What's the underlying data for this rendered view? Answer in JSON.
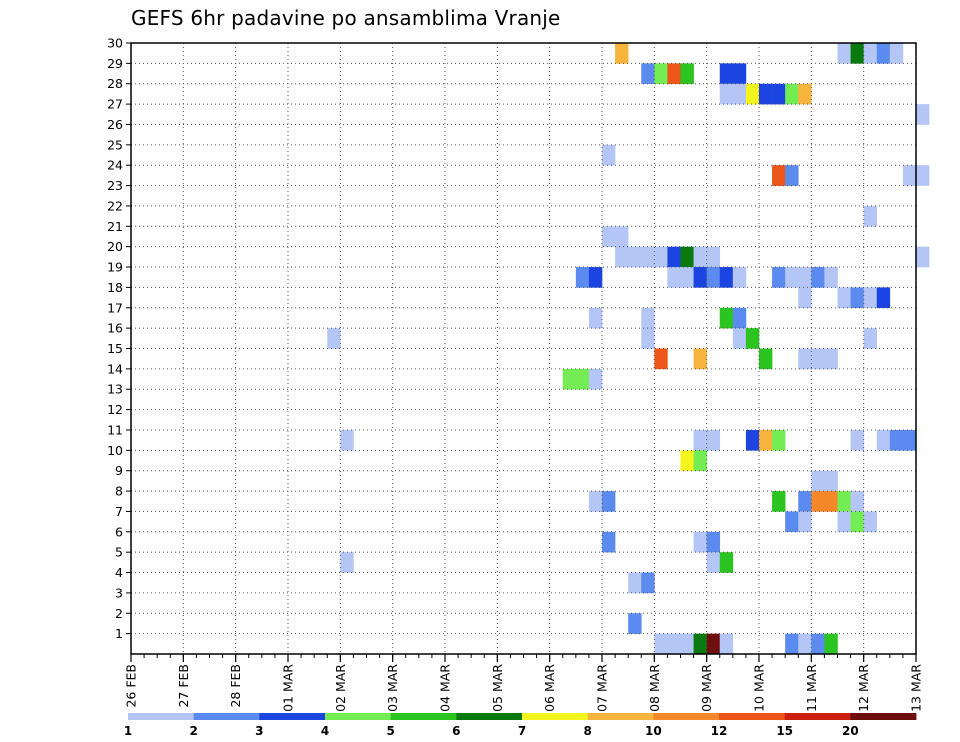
{
  "chart_data": {
    "type": "heatmap",
    "title": "GEFS 6hr padavine po ansamblima Vranje",
    "x_tick_labels": [
      "26 FEB",
      "27 FEB",
      "28 FEB",
      "01 MAR",
      "02 MAR",
      "03 MAR",
      "04 MAR",
      "05 MAR",
      "06 MAR",
      "07 MAR",
      "08 MAR",
      "09 MAR",
      "10 MAR",
      "11 MAR",
      "12 MAR",
      "13 MAR"
    ],
    "y_ticks": [
      1,
      2,
      3,
      4,
      5,
      6,
      7,
      8,
      9,
      10,
      11,
      12,
      13,
      14,
      15,
      16,
      17,
      18,
      19,
      20,
      21,
      22,
      23,
      24,
      25,
      26,
      27,
      28,
      29,
      30
    ],
    "xlim": [
      0,
      60
    ],
    "ylim": [
      0,
      30
    ],
    "time_step": "6hr",
    "grid": "dotted",
    "colorbar": {
      "levels": [
        "1",
        "2",
        "3",
        "4",
        "5",
        "6",
        "7",
        "8",
        "10",
        "12",
        "15",
        "20"
      ],
      "colors": [
        "#b3c6f5",
        "#5b8bef",
        "#1c44e0",
        "#74ec54",
        "#2cc421",
        "#0a7a10",
        "#f5f51e",
        "#f7b43c",
        "#f5892a",
        "#ee5518",
        "#cc1d0e",
        "#6e0f0e"
      ]
    },
    "cells": [
      [
        37,
        29,
        7
      ],
      [
        54,
        29,
        0
      ],
      [
        55,
        29,
        5
      ],
      [
        56,
        29,
        0
      ],
      [
        57,
        29,
        1
      ],
      [
        58,
        29,
        0
      ],
      [
        39,
        28,
        1
      ],
      [
        40,
        28,
        3
      ],
      [
        41,
        28,
        9
      ],
      [
        42,
        28,
        4
      ],
      [
        45,
        28,
        2
      ],
      [
        46,
        28,
        2
      ],
      [
        45,
        27,
        0
      ],
      [
        46,
        27,
        0
      ],
      [
        47,
        27,
        6
      ],
      [
        48,
        27,
        2
      ],
      [
        49,
        27,
        2
      ],
      [
        50,
        27,
        3
      ],
      [
        51,
        27,
        7
      ],
      [
        60,
        26,
        0
      ],
      [
        36,
        24,
        0
      ],
      [
        49,
        23,
        9
      ],
      [
        50,
        23,
        1
      ],
      [
        59,
        23,
        0
      ],
      [
        60,
        23,
        0
      ],
      [
        56,
        21,
        0
      ],
      [
        36,
        20,
        0
      ],
      [
        37,
        20,
        0
      ],
      [
        37,
        19,
        0
      ],
      [
        38,
        19,
        0
      ],
      [
        39,
        19,
        0
      ],
      [
        40,
        19,
        0
      ],
      [
        41,
        19,
        2
      ],
      [
        42,
        19,
        5
      ],
      [
        43,
        19,
        0
      ],
      [
        44,
        19,
        0
      ],
      [
        60,
        19,
        0
      ],
      [
        34,
        18,
        1
      ],
      [
        35,
        18,
        2
      ],
      [
        41,
        18,
        0
      ],
      [
        42,
        18,
        0
      ],
      [
        43,
        18,
        2
      ],
      [
        44,
        18,
        1
      ],
      [
        45,
        18,
        2
      ],
      [
        46,
        18,
        0
      ],
      [
        49,
        18,
        1
      ],
      [
        50,
        18,
        0
      ],
      [
        51,
        18,
        0
      ],
      [
        52,
        18,
        1
      ],
      [
        53,
        18,
        0
      ],
      [
        51,
        17,
        0
      ],
      [
        54,
        17,
        0
      ],
      [
        55,
        17,
        1
      ],
      [
        56,
        17,
        0
      ],
      [
        57,
        17,
        2
      ],
      [
        35,
        16,
        0
      ],
      [
        39,
        16,
        0
      ],
      [
        45,
        16,
        4
      ],
      [
        46,
        16,
        1
      ],
      [
        15,
        15,
        0
      ],
      [
        39,
        15,
        0
      ],
      [
        46,
        15,
        0
      ],
      [
        47,
        15,
        4
      ],
      [
        56,
        15,
        0
      ],
      [
        40,
        14,
        9
      ],
      [
        43,
        14,
        7
      ],
      [
        48,
        14,
        4
      ],
      [
        51,
        14,
        0
      ],
      [
        52,
        14,
        0
      ],
      [
        53,
        14,
        0
      ],
      [
        33,
        13,
        3
      ],
      [
        34,
        13,
        3
      ],
      [
        35,
        13,
        0
      ],
      [
        16,
        10,
        0
      ],
      [
        43,
        10,
        0
      ],
      [
        44,
        10,
        0
      ],
      [
        47,
        10,
        2
      ],
      [
        48,
        10,
        7
      ],
      [
        49,
        10,
        3
      ],
      [
        55,
        10,
        0
      ],
      [
        57,
        10,
        0
      ],
      [
        58,
        10,
        1
      ],
      [
        59,
        10,
        1
      ],
      [
        42,
        9,
        6
      ],
      [
        43,
        9,
        3
      ],
      [
        52,
        8,
        0
      ],
      [
        53,
        8,
        0
      ],
      [
        35,
        7,
        0
      ],
      [
        36,
        7,
        1
      ],
      [
        49,
        7,
        4
      ],
      [
        51,
        7,
        1
      ],
      [
        52,
        7,
        8
      ],
      [
        53,
        7,
        8
      ],
      [
        54,
        7,
        3
      ],
      [
        55,
        7,
        0
      ],
      [
        50,
        6,
        1
      ],
      [
        51,
        6,
        0
      ],
      [
        54,
        6,
        0
      ],
      [
        55,
        6,
        3
      ],
      [
        56,
        6,
        0
      ],
      [
        36,
        5,
        1
      ],
      [
        43,
        5,
        0
      ],
      [
        44,
        5,
        1
      ],
      [
        16,
        4,
        0
      ],
      [
        44,
        4,
        0
      ],
      [
        45,
        4,
        4
      ],
      [
        38,
        3,
        0
      ],
      [
        39,
        3,
        1
      ],
      [
        38,
        1,
        1
      ],
      [
        40,
        0,
        0
      ],
      [
        41,
        0,
        0
      ],
      [
        42,
        0,
        0
      ],
      [
        43,
        0,
        5
      ],
      [
        44,
        0,
        11
      ],
      [
        45,
        0,
        0
      ],
      [
        50,
        0,
        1
      ],
      [
        51,
        0,
        0
      ],
      [
        52,
        0,
        1
      ],
      [
        53,
        0,
        4
      ]
    ]
  }
}
